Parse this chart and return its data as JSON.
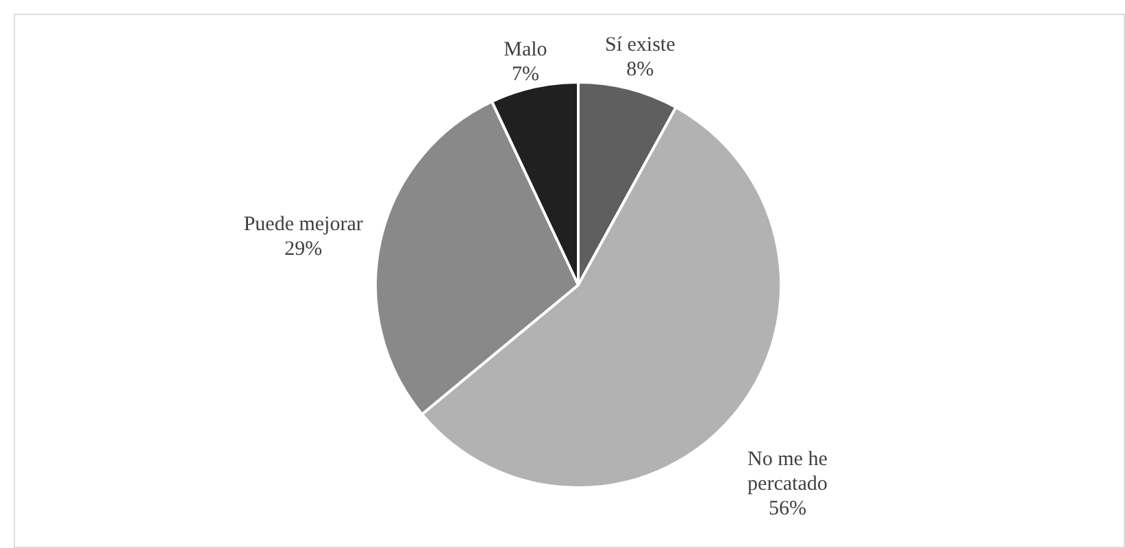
{
  "chart_data": {
    "type": "pie",
    "categories": [
      "Sí existe",
      "No me he percatado",
      "Puede mejorar",
      "Malo"
    ],
    "values": [
      8,
      56,
      29,
      7
    ],
    "colors": [
      "#5f5f5f",
      "#b2b2b2",
      "#898989",
      "#202020"
    ],
    "value_labels": [
      "8%",
      "56%",
      "29%",
      "7%"
    ]
  }
}
